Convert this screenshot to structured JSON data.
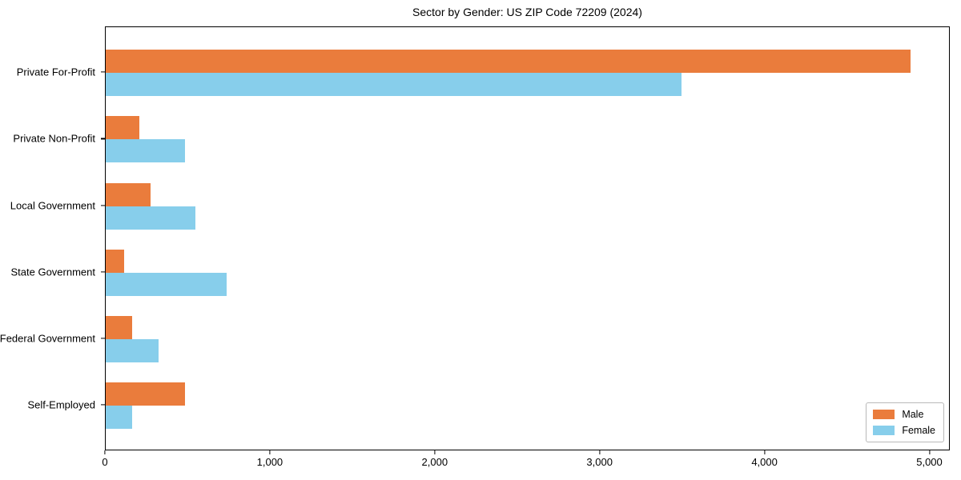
{
  "chart": {
    "title": "Sector by Gender: US ZIP Code 72209 (2024)",
    "colors": {
      "male": "#EA7C3C",
      "female": "#87CEEB",
      "axis": "#000000",
      "legend_border": "#b9b9b9",
      "background": "#ffffff"
    }
  },
  "chart_data": {
    "type": "bar",
    "orientation": "horizontal",
    "title": "Sector by Gender: US ZIP Code 72209 (2024)",
    "categories": [
      "Private For-Profit",
      "Private Non-Profit",
      "Local Government",
      "State Government",
      "Federal Government",
      "Self-Employed"
    ],
    "series": [
      {
        "name": "Male",
        "color": "#EA7C3C",
        "values": [
          4880,
          205,
          270,
          110,
          160,
          480
        ]
      },
      {
        "name": "Female",
        "color": "#87CEEB",
        "values": [
          3490,
          480,
          545,
          735,
          320,
          160
        ]
      }
    ],
    "xlabel": "",
    "ylabel": "",
    "xlim": [
      0,
      5124
    ],
    "xticks": [
      0,
      1000,
      2000,
      3000,
      4000,
      5000
    ],
    "xtick_labels": [
      "0",
      "1,000",
      "2,000",
      "3,000",
      "4,000",
      "5,000"
    ],
    "grid": false,
    "legend_position": "lower right",
    "legend_entries": [
      "Male",
      "Female"
    ]
  }
}
